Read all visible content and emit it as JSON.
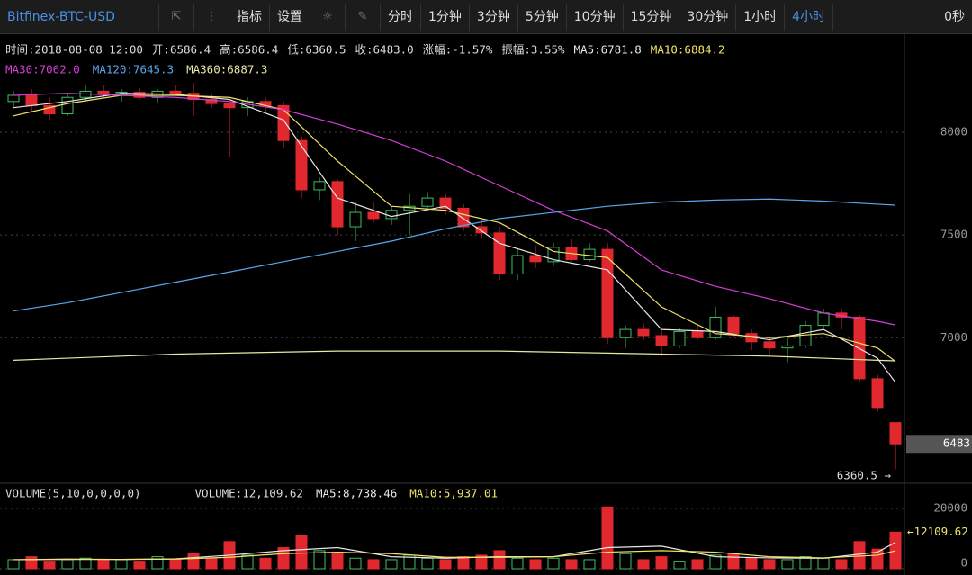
{
  "toolbar": {
    "symbol": "Bitfinex-BTC-USD",
    "buttons": [
      "指标",
      "设置"
    ],
    "periods": [
      "分时",
      "1分钟",
      "3分钟",
      "5分钟",
      "10分钟",
      "15分钟",
      "30分钟",
      "1小时",
      "4小时"
    ],
    "active_period": 8,
    "timer": "0秒"
  },
  "info": {
    "row1": [
      "时间:2018-08-08 12:00",
      "开:6586.4",
      "高:6586.4",
      "低:6360.5",
      "收:6483.0",
      "涨幅:-1.57%",
      "振幅:3.55%"
    ]
  },
  "chart_data": {
    "type": "candlestick",
    "open": [
      8150,
      8180,
      8130,
      8090,
      8170,
      8200,
      8185,
      8195,
      8170,
      8200,
      8190,
      8160,
      8140,
      8120,
      8150,
      8130,
      7960,
      7720,
      7760,
      7540,
      7610,
      7580,
      7620,
      7640,
      7680,
      7630,
      7540,
      7510,
      7310,
      7400,
      7370,
      7440,
      7380,
      7430,
      7000,
      7040,
      7010,
      6960,
      7030,
      7000,
      7100,
      7020,
      6980,
      6950,
      6960,
      7060,
      7120,
      7100,
      6800,
      6586.4
    ],
    "high": [
      8200,
      8210,
      8170,
      8190,
      8230,
      8230,
      8210,
      8215,
      8210,
      8230,
      8240,
      8190,
      8160,
      8170,
      8170,
      8150,
      7980,
      7780,
      7770,
      7660,
      7660,
      7640,
      7700,
      7710,
      7700,
      7650,
      7580,
      7540,
      7430,
      7450,
      7460,
      7480,
      7460,
      7460,
      7060,
      7070,
      7050,
      7050,
      7060,
      7150,
      7110,
      7040,
      7000,
      7000,
      7080,
      7140,
      7140,
      7110,
      6820,
      6586.4
    ],
    "low": [
      8120,
      8100,
      8060,
      8080,
      8150,
      8170,
      8150,
      8160,
      8140,
      8180,
      8080,
      8120,
      7880,
      8080,
      8100,
      7920,
      7680,
      7670,
      7500,
      7470,
      7560,
      7550,
      7500,
      7620,
      7600,
      7520,
      7480,
      7280,
      7280,
      7340,
      7350,
      7370,
      7370,
      6970,
      6950,
      6990,
      6910,
      6950,
      6990,
      6990,
      7000,
      6940,
      6920,
      6880,
      6950,
      7050,
      7040,
      6780,
      6640,
      6360.5
    ],
    "close": [
      8180,
      8130,
      8090,
      8170,
      8200,
      8185,
      8195,
      8170,
      8200,
      8190,
      8160,
      8140,
      8120,
      8150,
      8130,
      7960,
      7720,
      7760,
      7540,
      7610,
      7580,
      7620,
      7640,
      7680,
      7630,
      7540,
      7510,
      7310,
      7400,
      7370,
      7440,
      7380,
      7430,
      7000,
      7040,
      7010,
      6960,
      7030,
      7000,
      7100,
      7020,
      6980,
      6950,
      6960,
      7060,
      7120,
      7100,
      6800,
      6660,
      6483.0
    ],
    "up_color": "#3fbf5f",
    "down_color": "#e0282e",
    "ylim": [
      6300,
      8250
    ],
    "yticks": [
      8000,
      7500,
      7000
    ],
    "grid": true,
    "ma_x": [
      0,
      3,
      6,
      9,
      12,
      15,
      18,
      21,
      24,
      27,
      30,
      33,
      36,
      39,
      42,
      45,
      48,
      49
    ],
    "series": [
      {
        "label": "MA5:6781.8",
        "color": "#e8e8e8",
        "values": [
          8120,
          8150,
          8190,
          8185,
          8160,
          8060,
          7680,
          7590,
          7640,
          7460,
          7380,
          7330,
          7040,
          7030,
          6990,
          7040,
          6900,
          6781.8
        ]
      },
      {
        "label": "MA10:6884.2",
        "color": "#f2e36b",
        "values": [
          8080,
          8140,
          8180,
          8180,
          8170,
          8110,
          7860,
          7640,
          7620,
          7560,
          7420,
          7390,
          7150,
          7020,
          7000,
          7020,
          6950,
          6884.2
        ]
      },
      {
        "label": "MA30:7062.0",
        "color": "#d43ed8",
        "values": [
          8180,
          8190,
          8180,
          8170,
          8150,
          8110,
          8040,
          7960,
          7860,
          7740,
          7620,
          7520,
          7330,
          7250,
          7190,
          7120,
          7080,
          7062.0
        ]
      },
      {
        "label": "MA120:7645.3",
        "color": "#5aa6ec",
        "values": [
          7130,
          7170,
          7220,
          7270,
          7320,
          7370,
          7420,
          7470,
          7530,
          7580,
          7610,
          7640,
          7660,
          7670,
          7675,
          7665,
          7650,
          7645.3
        ]
      },
      {
        "label": "MA360:6887.3",
        "color": "#e9e8a6",
        "values": [
          6890,
          6900,
          6910,
          6920,
          6925,
          6930,
          6935,
          6935,
          6935,
          6935,
          6930,
          6925,
          6920,
          6915,
          6910,
          6900,
          6890,
          6887.3
        ]
      }
    ],
    "last_price": {
      "value": 6483,
      "label": "6483"
    },
    "low_marker": {
      "value": 6360.5,
      "label": "6360.5 →"
    },
    "volume": {
      "title": "VOLUME(5,10,0,0,0,0)",
      "label": "VOLUME:12,109.62",
      "values": [
        3000,
        4000,
        2500,
        3000,
        3500,
        2800,
        3000,
        2500,
        4000,
        3000,
        5000,
        3500,
        9000,
        4500,
        3500,
        7000,
        11000,
        6000,
        5000,
        3500,
        3000,
        3000,
        4500,
        3500,
        3000,
        4000,
        4500,
        6000,
        3500,
        3000,
        3500,
        3000,
        3000,
        20500,
        5000,
        3000,
        4000,
        2500,
        3000,
        4500,
        5000,
        3500,
        3000,
        3000,
        4000,
        3500,
        3000,
        9000,
        6500,
        12109.62
      ],
      "ylim": [
        0,
        21000
      ],
      "yticks": [
        20000,
        0
      ],
      "last": {
        "value": 12109.62,
        "label": "←12109.62"
      },
      "series": [
        {
          "label": "MA5:8,738.46",
          "color": "#e8e8e8",
          "values": [
            3000,
            3200,
            3100,
            3300,
            4500,
            6000,
            7000,
            4000,
            3500,
            4000,
            4000,
            7000,
            7500,
            4000,
            3600,
            3500,
            5500,
            8738.46
          ]
        },
        {
          "label": "MA10:5,937.01",
          "color": "#f2e36b",
          "values": [
            3000,
            3100,
            3100,
            3200,
            3800,
            5000,
            5500,
            5000,
            3800,
            3800,
            4000,
            5500,
            6000,
            5500,
            4000,
            3600,
            4500,
            5937.01
          ]
        }
      ]
    }
  }
}
